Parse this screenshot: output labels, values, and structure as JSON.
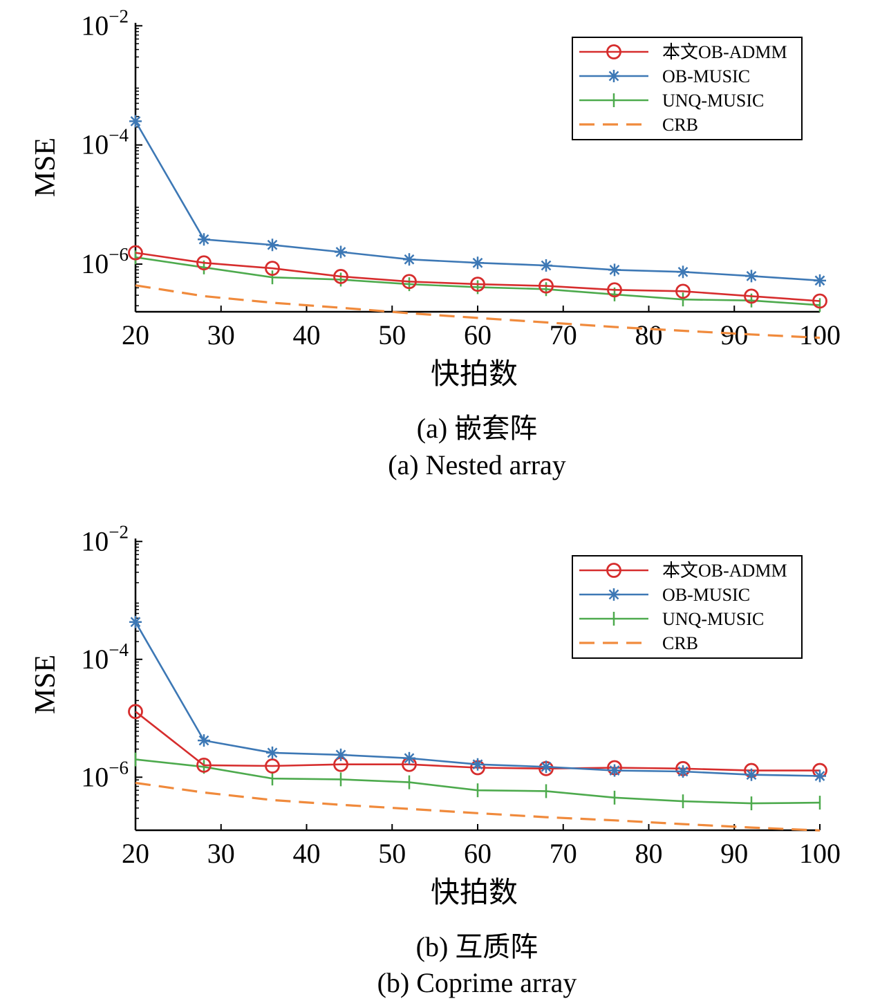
{
  "chart_data": [
    {
      "type": "line",
      "caption_zh": "(a) 嵌套阵",
      "caption_en": "(a) Nested array",
      "xlabel": "快拍数",
      "ylabel": "MSE",
      "yscale": "log",
      "xlim": [
        20,
        100
      ],
      "ylim_exp": [
        -6.8,
        -1.95
      ],
      "xticks": [
        20,
        30,
        40,
        50,
        60,
        70,
        80,
        90,
        100
      ],
      "xtick_labels": [
        "20",
        "30",
        "40",
        "50",
        "60",
        "70",
        "80",
        "90",
        "100"
      ],
      "yticks_exp": [
        -6,
        -4,
        -2
      ],
      "ytick_base": "10",
      "ytick_exps": [
        "−6",
        "−4",
        "−2"
      ],
      "legend_position": "top-right",
      "x": [
        20,
        28,
        36,
        44,
        52,
        60,
        68,
        76,
        84,
        92,
        100
      ],
      "series": [
        {
          "name": "本文OB-ADMM",
          "color": "#d62d2d",
          "marker": "circle",
          "dash": "solid",
          "values": [
            1.55e-06,
            1.05e-06,
            8.5e-07,
            6.2e-07,
            5.1e-07,
            4.6e-07,
            4.3e-07,
            3.7e-07,
            3.5e-07,
            2.9e-07,
            2.4e-07
          ]
        },
        {
          "name": "OB-MUSIC",
          "color": "#3d78b5",
          "marker": "star",
          "dash": "solid",
          "values": [
            0.00025,
            2.6e-06,
            2.1e-06,
            1.6e-06,
            1.2e-06,
            1.05e-06,
            9.5e-07,
            8e-07,
            7.4e-07,
            6.3e-07,
            5.3e-07
          ]
        },
        {
          "name": "UNQ-MUSIC",
          "color": "#4daa4d",
          "marker": "plus",
          "dash": "solid",
          "values": [
            1.3e-06,
            8.8e-07,
            6e-07,
            5.5e-07,
            4.6e-07,
            4.1e-07,
            3.8e-07,
            3.1e-07,
            2.55e-07,
            2.45e-07,
            2.05e-07
          ]
        },
        {
          "name": "CRB",
          "color": "#f08a3c",
          "marker": "none",
          "dash": "dashed",
          "values": [
            4.4e-07,
            2.9e-07,
            2.25e-07,
            1.85e-07,
            1.5e-07,
            1.25e-07,
            1.05e-07,
            8.8e-08,
            7.6e-08,
            6.6e-08,
            5.8e-08
          ]
        }
      ]
    },
    {
      "type": "line",
      "caption_zh": "(b) 互质阵",
      "caption_en": "(b) Coprime array",
      "xlabel": "快拍数",
      "ylabel": "MSE",
      "yscale": "log",
      "xlim": [
        20,
        100
      ],
      "ylim_exp": [
        -6.9,
        -1.95
      ],
      "xticks": [
        20,
        30,
        40,
        50,
        60,
        70,
        80,
        90,
        100
      ],
      "xtick_labels": [
        "20",
        "30",
        "40",
        "50",
        "60",
        "70",
        "80",
        "90",
        "100"
      ],
      "yticks_exp": [
        -6,
        -4,
        -2
      ],
      "ytick_base": "10",
      "ytick_exps": [
        "−6",
        "−4",
        "−2"
      ],
      "legend_position": "top-right",
      "x": [
        20,
        28,
        36,
        44,
        52,
        60,
        68,
        76,
        84,
        92,
        100
      ],
      "series": [
        {
          "name": "本文OB-ADMM",
          "color": "#d62d2d",
          "marker": "circle",
          "dash": "solid",
          "values": [
            1.3e-05,
            1.6e-06,
            1.55e-06,
            1.65e-06,
            1.65e-06,
            1.45e-06,
            1.4e-06,
            1.45e-06,
            1.4e-06,
            1.3e-06,
            1.3e-06
          ]
        },
        {
          "name": "OB-MUSIC",
          "color": "#3d78b5",
          "marker": "star",
          "dash": "solid",
          "values": [
            0.00043,
            4.2e-06,
            2.6e-06,
            2.4e-06,
            2.1e-06,
            1.65e-06,
            1.5e-06,
            1.3e-06,
            1.25e-06,
            1.1e-06,
            1.05e-06
          ]
        },
        {
          "name": "UNQ-MUSIC",
          "color": "#4daa4d",
          "marker": "plus",
          "dash": "solid",
          "values": [
            2e-06,
            1.5e-06,
            9.5e-07,
            9.2e-07,
            8.2e-07,
            6e-07,
            5.8e-07,
            4.5e-07,
            3.9e-07,
            3.6e-07,
            3.7e-07
          ]
        },
        {
          "name": "CRB",
          "color": "#f08a3c",
          "marker": "none",
          "dash": "dashed",
          "values": [
            8e-07,
            5.5e-07,
            4.1e-07,
            3.4e-07,
            2.9e-07,
            2.45e-07,
            2.1e-07,
            1.85e-07,
            1.6e-07,
            1.4e-07,
            1.25e-07
          ]
        }
      ]
    }
  ]
}
